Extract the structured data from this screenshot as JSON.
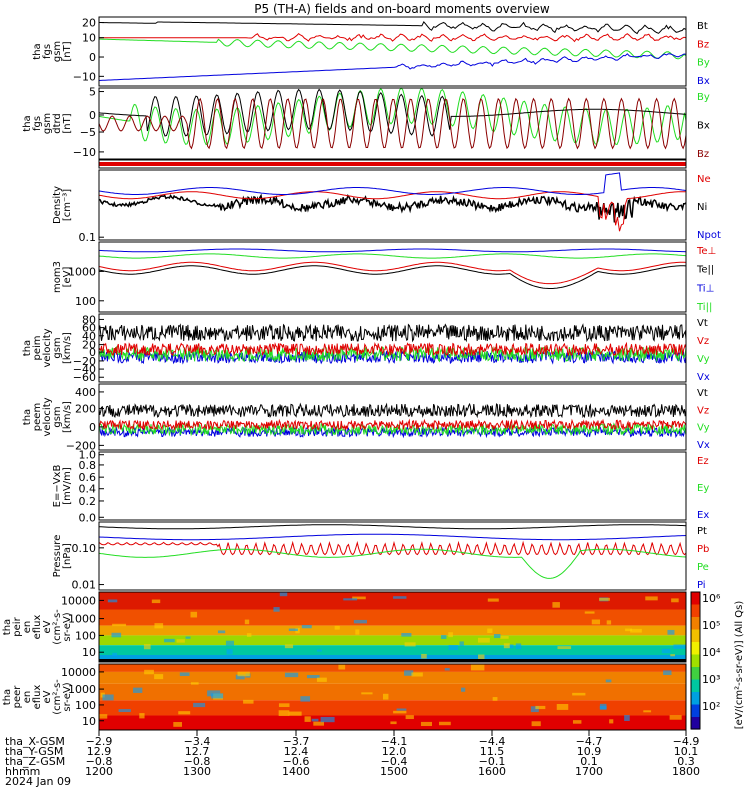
{
  "chart_data": {
    "type": "line",
    "title": "P5 (TH-A) fields and on-board moments overview",
    "colors": {
      "black": "#000000",
      "red": "#e00000",
      "darkred": "#8b0000",
      "green": "#22dd22",
      "blue": "#0000dd"
    },
    "panels": [
      {
        "ylabel": [
          "tha",
          "fgs",
          "gsm",
          "[nT]"
        ],
        "ticks": [
          "20",
          "10",
          "0",
          "−10"
        ],
        "series": [
          {
            "name": "Bt",
            "color": "#000000"
          },
          {
            "name": "Bz",
            "color": "#e00000"
          },
          {
            "name": "By",
            "color": "#22dd22"
          },
          {
            "name": "Bx",
            "color": "#0000dd"
          }
        ]
      },
      {
        "ylabel": [
          "tha",
          "fgs",
          "gsm",
          "dtrd",
          "[nT]"
        ],
        "ticks": [
          "5",
          "0",
          "−5",
          "−10"
        ],
        "series": [
          {
            "name": "By",
            "color": "#22dd22"
          },
          {
            "name": "Bx",
            "color": "#000000"
          },
          {
            "name": "Bz",
            "color": "#8b0000"
          }
        ]
      },
      {
        "ylabel": [],
        "ticks": [],
        "series": []
      },
      {
        "ylabel": [
          "Density",
          "[cm⁻³]"
        ],
        "ticks": [
          "0.1"
        ],
        "series": [
          {
            "name": "Ne",
            "color": "#e00000"
          },
          {
            "name": "Ni",
            "color": "#000000"
          },
          {
            "name": "Npot",
            "color": "#0000dd"
          }
        ]
      },
      {
        "ylabel": [
          "mom3",
          "[eV]"
        ],
        "ticks": [
          "1000",
          "100"
        ],
        "series": [
          {
            "name": "Te⊥",
            "color": "#e00000"
          },
          {
            "name": "Te||",
            "color": "#000000"
          },
          {
            "name": "Ti⊥",
            "color": "#0000dd"
          },
          {
            "name": "Ti||",
            "color": "#22dd22"
          }
        ]
      },
      {
        "ylabel": [
          "tha",
          "peim",
          "velocity",
          "gsm",
          "[km/s]"
        ],
        "ticks": [
          "80",
          "60",
          "40",
          "20",
          "0",
          "−20",
          "−40",
          "−60"
        ],
        "series": [
          {
            "name": "Vt",
            "color": "#000000"
          },
          {
            "name": "Vz",
            "color": "#e00000"
          },
          {
            "name": "Vy",
            "color": "#22dd22"
          },
          {
            "name": "Vx",
            "color": "#0000dd"
          }
        ]
      },
      {
        "ylabel": [
          "tha",
          "peem",
          "velocity",
          "gsm",
          "[km/s]"
        ],
        "ticks": [
          "400",
          "200",
          "0",
          "−200"
        ],
        "series": [
          {
            "name": "Vt",
            "color": "#000000"
          },
          {
            "name": "Vz",
            "color": "#e00000"
          },
          {
            "name": "Vy",
            "color": "#22dd22"
          },
          {
            "name": "Vx",
            "color": "#0000dd"
          }
        ]
      },
      {
        "ylabel": [
          "E=−VxB",
          "[mV/m]"
        ],
        "ticks": [
          "1.0",
          "0.8",
          "0.6",
          "0.4",
          "0.2",
          "0.0"
        ],
        "series": [
          {
            "name": "Ez",
            "color": "#e00000"
          },
          {
            "name": "Ey",
            "color": "#22dd22"
          },
          {
            "name": "Ex",
            "color": "#0000dd"
          }
        ]
      },
      {
        "ylabel": [
          "Pressure",
          "[nPa]"
        ],
        "ticks": [
          "0.10",
          "0.01"
        ],
        "series": [
          {
            "name": "Pt",
            "color": "#000000"
          },
          {
            "name": "Pb",
            "color": "#e00000"
          },
          {
            "name": "Pe",
            "color": "#22dd22"
          },
          {
            "name": "Pi",
            "color": "#0000dd"
          }
        ]
      },
      {
        "ylabel": [
          "tha",
          "peir",
          "en",
          "eflux",
          "eV",
          "(cm²-s-",
          "sr-eV)"
        ],
        "ticks": [
          "10000",
          "1000",
          "100",
          "10"
        ],
        "series": []
      },
      {
        "ylabel": [
          "tha",
          "peer",
          "en",
          "eflux",
          "eV",
          "(cm²-s-",
          "sr-eV)"
        ],
        "ticks": [
          "10000",
          "1000",
          "100",
          "10"
        ],
        "series": []
      }
    ],
    "colorbar": {
      "label": "[eV/(cm²-s-sr-eV)] (All Qs)",
      "ticks": [
        "10⁶",
        "10⁵",
        "10⁴",
        "10³",
        "10²"
      ]
    },
    "footer": {
      "rows": [
        {
          "label": "tha_X-GSM",
          "values": [
            "−2.9",
            "−3.4",
            "−3.7",
            "−4.1",
            "−4.4",
            "−4.7",
            "−4.9"
          ]
        },
        {
          "label": "tha_Y-GSM",
          "values": [
            "12.9",
            "12.7",
            "12.4",
            "12.0",
            "11.5",
            "10.9",
            "10.1"
          ]
        },
        {
          "label": "tha_Z-GSM",
          "values": [
            "−0.8",
            "−0.8",
            "−0.6",
            "−0.4",
            "−0.1",
            "0.1",
            "0.3"
          ]
        },
        {
          "label": "hhmm",
          "values": [
            "1200",
            "1300",
            "1400",
            "1500",
            "1600",
            "1700",
            "1800"
          ]
        }
      ],
      "date": "2024 Jan 09"
    }
  }
}
